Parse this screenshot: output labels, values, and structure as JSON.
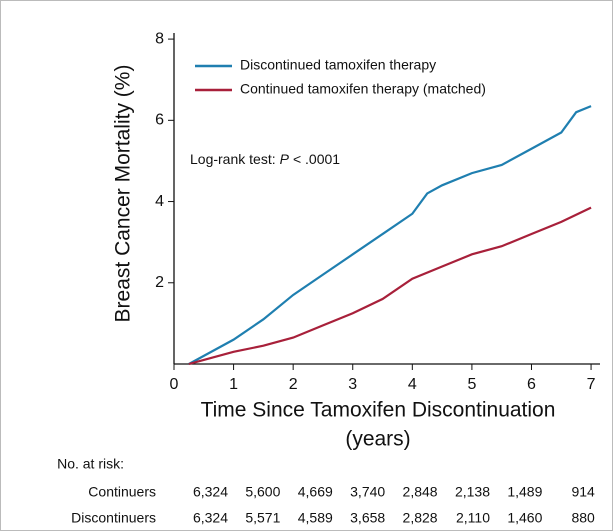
{
  "chart_data": {
    "type": "line",
    "ylabel": "Breast Cancer Mortality (%)",
    "xlabel": [
      "Time Since Tamoxifen Discontinuation",
      "(years)"
    ],
    "annotation": {
      "text": "Log-rank test:",
      "italic": "P",
      "rest": "< .0001"
    },
    "xlim": [
      0,
      7.15
    ],
    "ylim": [
      0,
      8.15
    ],
    "xticks": [
      0,
      1,
      2,
      3,
      4,
      5,
      6,
      7
    ],
    "yticks": [
      2,
      4,
      6,
      8
    ],
    "series": [
      {
        "name": "Discontinued tamoxifen therapy",
        "color": "#1f7fb0",
        "x": [
          0.25,
          0.5,
          1,
          1.5,
          2,
          2.5,
          3,
          3.5,
          4,
          4.25,
          4.5,
          5,
          5.5,
          6,
          6.5,
          6.75,
          7
        ],
        "values": [
          0,
          0.2,
          0.6,
          1.1,
          1.7,
          2.2,
          2.7,
          3.2,
          3.7,
          4.2,
          4.4,
          4.7,
          4.9,
          5.3,
          5.7,
          6.2,
          6.35
        ]
      },
      {
        "name": "Continued tamoxifen therapy (matched)",
        "color": "#a8203a",
        "x": [
          0.25,
          0.5,
          1,
          1.5,
          2,
          2.5,
          3,
          3.5,
          4,
          4.5,
          5,
          5.5,
          6,
          6.5,
          7
        ],
        "values": [
          0,
          0.1,
          0.3,
          0.45,
          0.65,
          0.95,
          1.25,
          1.6,
          2.1,
          2.4,
          2.7,
          2.9,
          3.2,
          3.5,
          3.85
        ]
      }
    ],
    "risk_table": {
      "title": "No. at risk:",
      "rows": [
        {
          "name": "Continuers",
          "values": [
            "6,324",
            "5,600",
            "4,669",
            "3,740",
            "2,848",
            "2,138",
            "1,489",
            "914"
          ]
        },
        {
          "name": "Discontinuers",
          "values": [
            "6,324",
            "5,571",
            "4,589",
            "3,658",
            "2,828",
            "2,110",
            "1,460",
            "880"
          ]
        }
      ]
    }
  }
}
